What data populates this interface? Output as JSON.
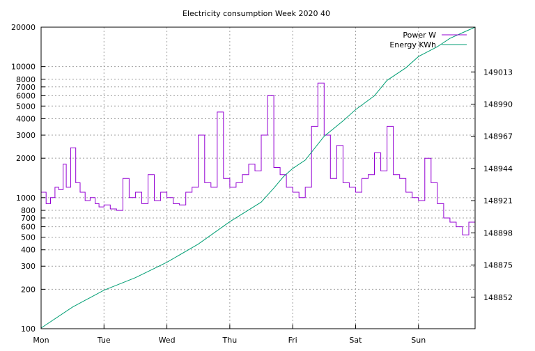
{
  "chart_data": {
    "type": "line",
    "title": "Electricity consumption Week 2020 40",
    "xlabel": "",
    "ylabel": "",
    "y2label": "",
    "x_ticks": [
      "Mon",
      "Tue",
      "Wed",
      "Thu",
      "Fri",
      "Sat",
      "Sun"
    ],
    "xlim": [
      0,
      6.9
    ],
    "y_left": {
      "scale": "log",
      "ylim": [
        100,
        20000
      ],
      "ticks": [
        100,
        200,
        300,
        400,
        500,
        600,
        700,
        800,
        1000,
        2000,
        3000,
        4000,
        5000,
        6000,
        7000,
        8000,
        10000,
        20000
      ]
    },
    "y_right": {
      "scale": "linear",
      "ylim": [
        148829.5,
        149045
      ],
      "ticks": [
        148852,
        148875,
        148898,
        148921,
        148944,
        148967,
        148990,
        149013
      ]
    },
    "grid": true,
    "legend_position": "top-right",
    "series": [
      {
        "name": "Power W",
        "axis": "left",
        "color": "#9400d3",
        "x": [
          0.0,
          0.08,
          0.15,
          0.22,
          0.28,
          0.35,
          0.4,
          0.47,
          0.55,
          0.62,
          0.7,
          0.78,
          0.86,
          0.92,
          1.0,
          1.1,
          1.2,
          1.3,
          1.4,
          1.5,
          1.6,
          1.7,
          1.8,
          1.9,
          2.0,
          2.1,
          2.2,
          2.3,
          2.4,
          2.5,
          2.6,
          2.7,
          2.8,
          2.9,
          3.0,
          3.1,
          3.2,
          3.3,
          3.4,
          3.5,
          3.6,
          3.7,
          3.8,
          3.9,
          4.0,
          4.1,
          4.2,
          4.3,
          4.4,
          4.5,
          4.6,
          4.7,
          4.8,
          4.9,
          5.0,
          5.1,
          5.2,
          5.3,
          5.4,
          5.5,
          5.6,
          5.7,
          5.8,
          5.9,
          6.0,
          6.1,
          6.2,
          6.3,
          6.4,
          6.5,
          6.6,
          6.7,
          6.8,
          6.9
        ],
        "values": [
          1100,
          900,
          1000,
          1200,
          1150,
          1800,
          1200,
          2400,
          1300,
          1100,
          950,
          1000,
          900,
          850,
          880,
          820,
          800,
          1400,
          1000,
          1100,
          900,
          1500,
          950,
          1100,
          1000,
          900,
          880,
          1100,
          1200,
          3000,
          1300,
          1200,
          4500,
          1400,
          1200,
          1300,
          1500,
          1800,
          1600,
          3000,
          6000,
          1700,
          1500,
          1200,
          1100,
          1000,
          1200,
          3500,
          7500,
          3000,
          1400,
          2500,
          1300,
          1200,
          1100,
          1400,
          1500,
          2200,
          1600,
          3500,
          1500,
          1400,
          1100,
          1000,
          950,
          2000,
          1300,
          900,
          700,
          650,
          600,
          520,
          650,
          700
        ]
      },
      {
        "name": "Energy KWh",
        "axis": "right",
        "color": "#009e73",
        "x": [
          0.0,
          0.5,
          1.0,
          1.5,
          2.0,
          2.5,
          3.0,
          3.5,
          3.7,
          3.85,
          4.0,
          4.2,
          4.5,
          4.8,
          5.0,
          5.3,
          5.5,
          5.8,
          6.0,
          6.3,
          6.5,
          6.7,
          6.9
        ],
        "values": [
          148830,
          148845,
          148857,
          148866,
          148877,
          148890,
          148906,
          148920,
          148930,
          148938,
          148944,
          148950,
          148967,
          148978,
          148986,
          148996,
          149007,
          149016,
          149024,
          149031,
          149037,
          149041,
          149045
        ]
      }
    ]
  }
}
